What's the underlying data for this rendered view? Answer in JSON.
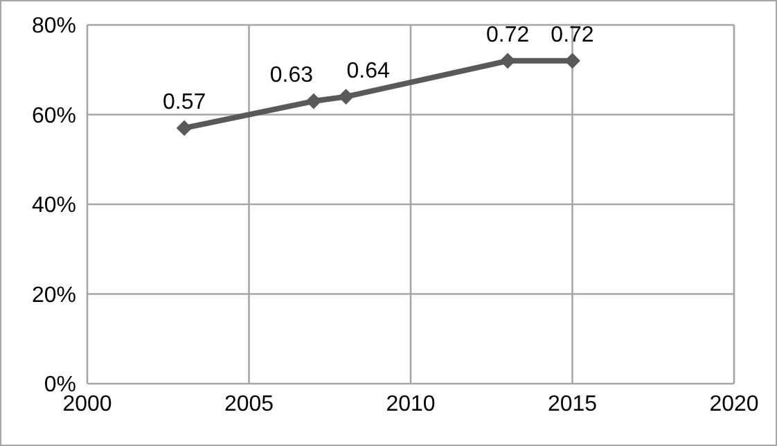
{
  "chart_data": {
    "type": "line",
    "x": [
      2003,
      2007,
      2008,
      2013,
      2015
    ],
    "series": [
      {
        "color": "#595959",
        "values": [
          0.57,
          0.63,
          0.64,
          0.72,
          0.72
        ]
      }
    ],
    "xlim": [
      2000,
      2020
    ],
    "xticks": [
      2000,
      2005,
      2010,
      2015,
      2020
    ],
    "ylim": [
      0,
      0.8
    ],
    "yticks": [
      {
        "value": 0,
        "label": "0%"
      },
      {
        "value": 0.2,
        "label": "20%"
      },
      {
        "value": 0.4,
        "label": "40%"
      },
      {
        "value": 0.6,
        "label": "60%"
      },
      {
        "value": 0.8,
        "label": "80%"
      }
    ],
    "grid": true,
    "marker": "diamond",
    "line_style": "solid",
    "data_labels": true
  }
}
